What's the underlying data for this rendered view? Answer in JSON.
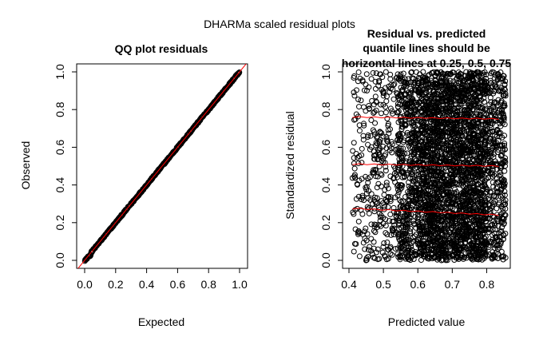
{
  "figure": {
    "title": "DHARMa scaled residual plots"
  },
  "chart_data": [
    {
      "type": "scatter",
      "title": "QQ plot residuals",
      "xlabel": "Expected",
      "ylabel": "Observed",
      "xlim": [
        0,
        1
      ],
      "ylim": [
        0,
        1
      ],
      "xticks": [
        "0.0",
        "0.2",
        "0.4",
        "0.6",
        "0.8",
        "1.0"
      ],
      "yticks": [
        "0.0",
        "0.2",
        "0.4",
        "0.6",
        "0.8",
        "1.0"
      ],
      "grid": false,
      "reference_line": {
        "slope": 1,
        "intercept": 0,
        "color": "#ff0000"
      },
      "points_follow_identity": true,
      "point_color": "#000000"
    },
    {
      "type": "scatter",
      "title_lines": [
        "Residual vs. predicted",
        "quantile lines should be",
        "horizontal lines at 0.25, 0.5, 0.75"
      ],
      "xlabel": "Predicted value",
      "ylabel": "Standardized residual",
      "xlim": [
        0.4,
        0.85
      ],
      "ylim": [
        0,
        1
      ],
      "xticks": [
        "0.4",
        "0.5",
        "0.6",
        "0.7",
        "0.8"
      ],
      "yticks": [
        "0.0",
        "0.2",
        "0.4",
        "0.6",
        "0.8",
        "1.0"
      ],
      "grid": false,
      "point_color": "#000000",
      "quantile_lines": [
        {
          "quantile": 0.25,
          "y_start": 0.275,
          "y_end": 0.24,
          "color": "#ff0000"
        },
        {
          "quantile": 0.5,
          "y_start": 0.51,
          "y_end": 0.5,
          "color": "#ff0000"
        },
        {
          "quantile": 0.75,
          "y_start": 0.76,
          "y_end": 0.75,
          "color": "#ff0000"
        }
      ]
    }
  ]
}
